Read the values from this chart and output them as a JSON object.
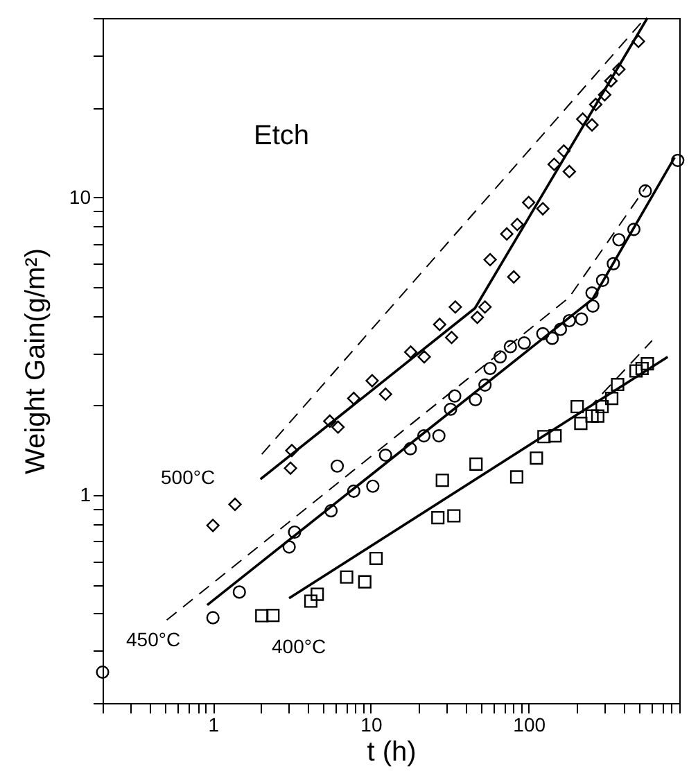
{
  "chart_data": {
    "type": "scatter",
    "xlabel": "t (h)",
    "ylabel": "Weight Gain(g/m²)",
    "log": "xy",
    "grid": false,
    "xlim": [
      0.2,
      900
    ],
    "ylim": [
      0.2,
      40
    ],
    "xticks": [
      {
        "value": 0.2,
        "label": null
      },
      {
        "value": 0.3,
        "label": null
      },
      {
        "value": 0.4,
        "label": null
      },
      {
        "value": 0.5,
        "label": null
      },
      {
        "value": 0.6,
        "label": null
      },
      {
        "value": 0.7,
        "label": null
      },
      {
        "value": 0.8,
        "label": null
      },
      {
        "value": 0.9,
        "label": null
      },
      1,
      {
        "value": 2,
        "label": null
      },
      {
        "value": 3,
        "label": null
      },
      {
        "value": 4,
        "label": null
      },
      {
        "value": 5,
        "label": null
      },
      {
        "value": 6,
        "label": null
      },
      {
        "value": 7,
        "label": null
      },
      {
        "value": 8,
        "label": null
      },
      {
        "value": 9,
        "label": null
      },
      10,
      {
        "value": 20,
        "label": null
      },
      {
        "value": 30,
        "label": null
      },
      {
        "value": 40,
        "label": null
      },
      {
        "value": 50,
        "label": null
      },
      {
        "value": 60,
        "label": null
      },
      {
        "value": 70,
        "label": null
      },
      {
        "value": 80,
        "label": null
      },
      {
        "value": 90,
        "label": null
      },
      100,
      {
        "value": 200,
        "label": null
      },
      {
        "value": 300,
        "label": null
      },
      {
        "value": 400,
        "label": null
      },
      {
        "value": 500,
        "label": null
      },
      {
        "value": 600,
        "label": null
      },
      {
        "value": 700,
        "label": null
      },
      {
        "value": 800,
        "label": null
      },
      {
        "value": 900,
        "label": null
      }
    ],
    "yticks": [
      {
        "value": 0.2,
        "label": null
      },
      {
        "value": 0.3,
        "label": null
      },
      {
        "value": 0.4,
        "label": null
      },
      {
        "value": 0.5,
        "label": null
      },
      {
        "value": 0.6,
        "label": null
      },
      {
        "value": 0.7,
        "label": null
      },
      {
        "value": 0.8,
        "label": null
      },
      {
        "value": 0.9,
        "label": null
      },
      1,
      {
        "value": 2,
        "label": null
      },
      {
        "value": 3,
        "label": null
      },
      {
        "value": 4,
        "label": null
      },
      {
        "value": 5,
        "label": null
      },
      {
        "value": 6,
        "label": null
      },
      {
        "value": 7,
        "label": null
      },
      {
        "value": 8,
        "label": null
      },
      {
        "value": 9,
        "label": null
      },
      10,
      {
        "value": 20,
        "label": null
      },
      {
        "value": 30,
        "label": null
      },
      {
        "value": 40,
        "label": null
      }
    ],
    "annotations": [
      "Etch",
      "500°C",
      "450°C",
      "400°C"
    ],
    "series": [
      {
        "marker": "diamond",
        "color": "#000000",
        "x": [
          1,
          1.38,
          3.1,
          3.16,
          5.5,
          6.2,
          7.8,
          10.2,
          12.4,
          17.9,
          21.8,
          27.3,
          32.5,
          34.3,
          47.3,
          52.9,
          57,
          72.7,
          80.5,
          84.7,
          100,
          123,
          145,
          167,
          181,
          220,
          252,
          266,
          303,
          332,
          373,
          496
        ],
        "values": [
          0.79,
          0.93,
          1.23,
          1.41,
          1.77,
          1.69,
          2.11,
          2.42,
          2.18,
          3.02,
          2.91,
          3.74,
          3.38,
          4.28,
          3.95,
          4.28,
          6.17,
          7.53,
          5.4,
          8.1,
          9.6,
          9.15,
          12.9,
          14.3,
          12.2,
          18.3,
          17.5,
          20.5,
          22.1,
          24.6,
          26.9,
          33.4
        ]
      },
      {
        "marker": "circle",
        "color": "#000000",
        "x": [
          0.2,
          1,
          1.47,
          3.04,
          3.29,
          5.6,
          6.13,
          7.8,
          10.3,
          12.4,
          17.8,
          21.7,
          27,
          32,
          34,
          46,
          52.9,
          57,
          66,
          76.6,
          93.8,
          123,
          141,
          159,
          181,
          216,
          252,
          255,
          294,
          344,
          373,
          464,
          548,
          880
        ],
        "values": [
          0.254,
          0.387,
          0.472,
          0.669,
          0.75,
          0.885,
          1.25,
          1.03,
          1.07,
          1.36,
          1.43,
          1.58,
          1.58,
          1.94,
          2.15,
          2.09,
          2.34,
          2.66,
          2.91,
          3.15,
          3.24,
          3.48,
          3.36,
          3.6,
          3.85,
          3.9,
          4.77,
          4.31,
          5.26,
          5.98,
          7.2,
          7.8,
          10.5,
          13.3
        ]
      },
      {
        "marker": "square",
        "color": "#000000",
        "x": [
          2.04,
          2.4,
          4.17,
          4.58,
          7.03,
          9.16,
          10.8,
          26.6,
          28.4,
          33.6,
          46.4,
          84,
          112,
          125,
          147,
          203,
          214,
          252,
          274,
          292,
          336,
          366,
          479,
          523,
          565
        ],
        "values": [
          0.393,
          0.394,
          0.44,
          0.464,
          0.53,
          0.511,
          0.612,
          0.839,
          1.12,
          0.851,
          1.27,
          1.15,
          1.33,
          1.57,
          1.58,
          1.98,
          1.74,
          1.84,
          1.84,
          1.98,
          2.11,
          2.35,
          2.61,
          2.66,
          2.76
        ]
      },
      {
        "type": "line",
        "line_style": "solid",
        "color": "#000000",
        "x": [
          2,
          45.7,
          565
        ],
        "values": [
          1.13,
          4.24,
          40
        ]
      },
      {
        "type": "line",
        "line_style": "dashed",
        "color": "#000000",
        "x": [
          2.04,
          548
        ],
        "values": [
          1.37,
          40
        ]
      },
      {
        "type": "line",
        "line_style": "solid",
        "color": "#000000",
        "x": [
          0.92,
          254,
          840
        ],
        "values": [
          0.427,
          4.55,
          13.6
        ]
      },
      {
        "type": "line",
        "line_style": "dashed",
        "color": "#000000",
        "x": [
          0.51,
          180,
          565
        ],
        "values": [
          0.38,
          4.6,
          11
        ]
      },
      {
        "type": "line",
        "line_style": "solid",
        "color": "#000000",
        "x": [
          3.04,
          760
        ],
        "values": [
          0.45,
          2.91
        ]
      },
      {
        "type": "line",
        "line_style": "dashed",
        "color": "#000000",
        "x": [
          3.04,
          250,
          605
        ],
        "values": [
          0.45,
          2,
          3.3
        ]
      }
    ]
  }
}
